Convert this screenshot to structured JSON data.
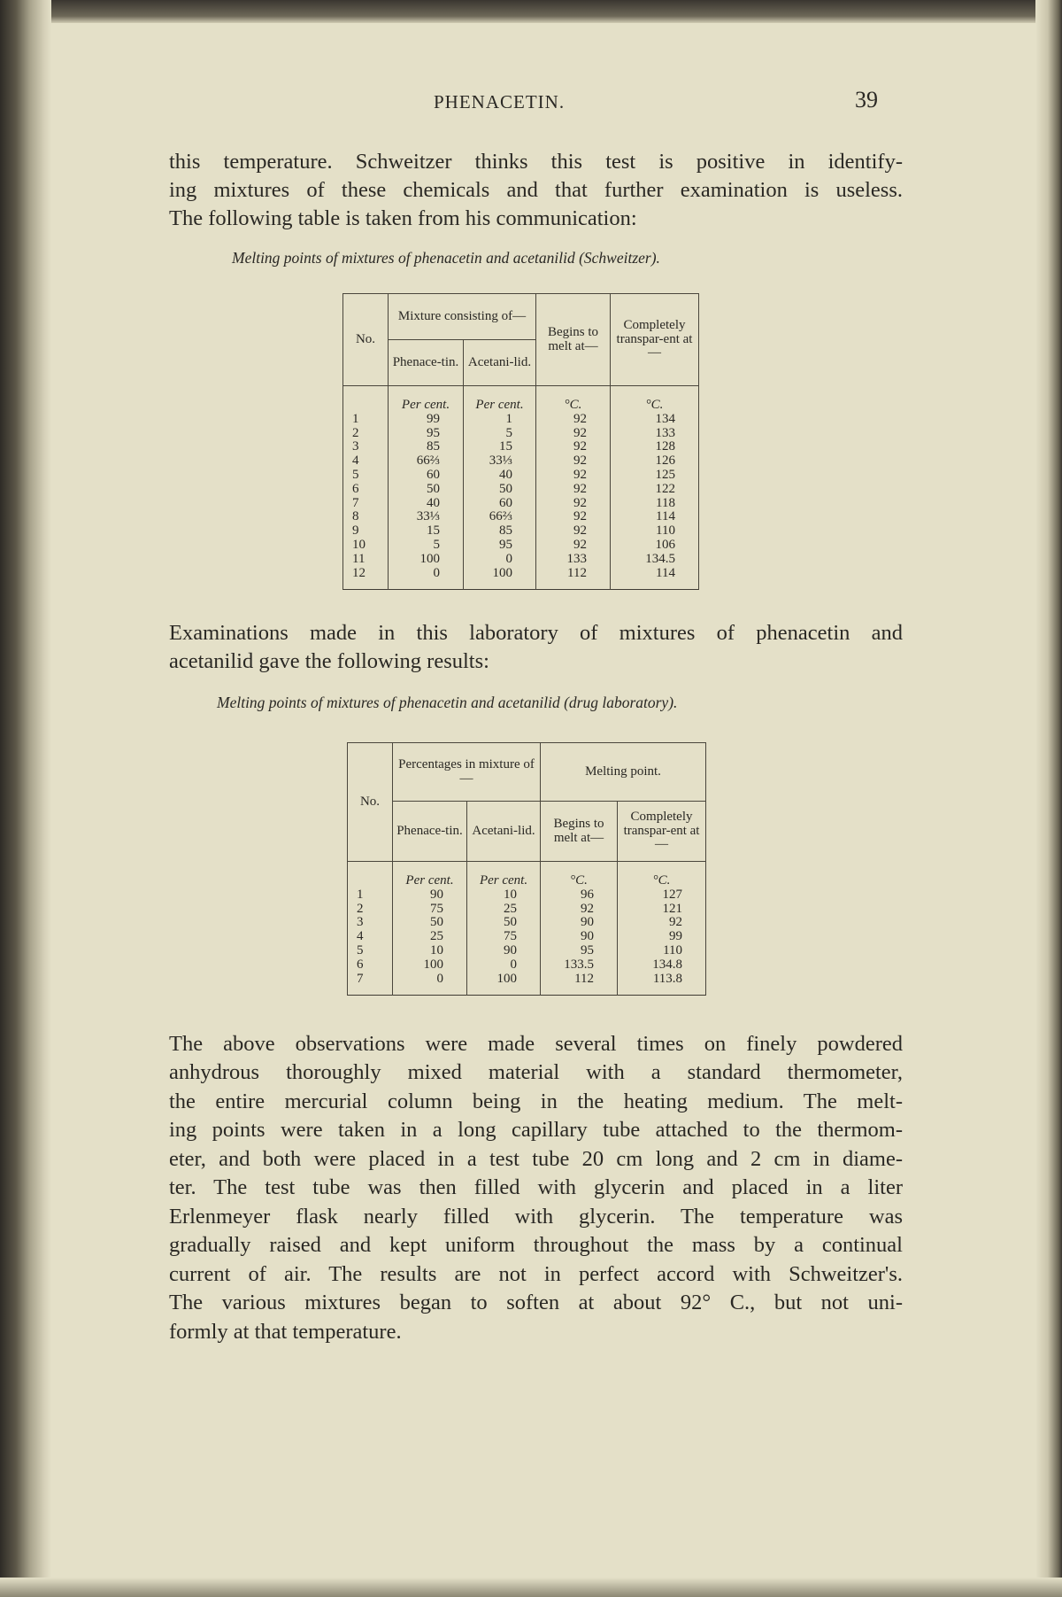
{
  "page": {
    "running_head": "PHENACETIN.",
    "page_number": "39"
  },
  "paragraph1": [
    "this temperature.  Schweitzer thinks this test is positive in identify-",
    "ing mixtures of these chemicals and that further examination is useless.",
    "The following table is taken from his communication:"
  ],
  "table1": {
    "caption": "Melting points of mixtures of phenacetin and acetanilid (Schweitzer).",
    "headers": {
      "no": "No.",
      "mixture": "Mixture consisting of—",
      "phenacetin": "Phenace-tin.",
      "acetanilid": "Acetani-lid.",
      "begins": "Begins to melt at—",
      "transparent": "Completely transpar-ent at—"
    },
    "units": [
      "",
      "Per cent.",
      "Per cent.",
      "°C.",
      "°C."
    ],
    "rows": [
      [
        "1",
        "99",
        "1",
        "92",
        "134"
      ],
      [
        "2",
        "95",
        "5",
        "92",
        "133"
      ],
      [
        "3",
        "85",
        "15",
        "92",
        "128"
      ],
      [
        "4",
        "66⅔",
        "33⅓",
        "92",
        "126"
      ],
      [
        "5",
        "60",
        "40",
        "92",
        "125"
      ],
      [
        "6",
        "50",
        "50",
        "92",
        "122"
      ],
      [
        "7",
        "40",
        "60",
        "92",
        "118"
      ],
      [
        "8",
        "33⅓",
        "66⅔",
        "92",
        "114"
      ],
      [
        "9",
        "15",
        "85",
        "92",
        "110"
      ],
      [
        "10",
        "5",
        "95",
        "92",
        "106"
      ],
      [
        "11",
        "100",
        "0",
        "133",
        "134.5"
      ],
      [
        "12",
        "0",
        "100",
        "112",
        "114"
      ]
    ]
  },
  "paragraph2": [
    "Examinations made in this laboratory of mixtures of phenacetin and",
    "acetanilid gave the following results:"
  ],
  "table2": {
    "caption": "Melting points of mixtures of phenacetin and acetanilid (drug laboratory).",
    "headers": {
      "no": "No.",
      "percentages": "Percentages in mixture of—",
      "melting": "Melting point.",
      "phenacetin": "Phenace-tin.",
      "acetanilid": "Acetani-lid.",
      "begins": "Begins to melt at—",
      "transparent": "Completely transpar-ent at—"
    },
    "units": [
      "",
      "Per cent.",
      "Per cent.",
      "°C.",
      "°C."
    ],
    "rows": [
      [
        "1",
        "90",
        "10",
        "96",
        "127"
      ],
      [
        "2",
        "75",
        "25",
        "92",
        "121"
      ],
      [
        "3",
        "50",
        "50",
        "90",
        "92"
      ],
      [
        "4",
        "25",
        "75",
        "90",
        "99"
      ],
      [
        "5",
        "10",
        "90",
        "95",
        "110"
      ],
      [
        "6",
        "100",
        "0",
        "133.5",
        "134.8"
      ],
      [
        "7",
        "0",
        "100",
        "112",
        "113.8"
      ]
    ]
  },
  "paragraph3": [
    "The above observations were made several times on finely powdered",
    "anhydrous thoroughly mixed material with a standard thermometer,",
    "the entire mercurial column being in the heating medium.  The melt-",
    "ing points were taken in a long capillary tube attached to the thermom-",
    "eter, and both were placed in a test tube 20 cm long and 2 cm in diame-",
    "ter.  The test tube was then filled with glycerin and placed in a liter",
    "Erlenmeyer flask nearly filled with glycerin.  The temperature was",
    "gradually raised and kept uniform throughout the mass by a continual",
    "current of air.  The results are not in perfect accord with Schweitzer's.",
    "The various mixtures began to soften at about 92° C., but not uni-",
    "formly at that temperature."
  ]
}
